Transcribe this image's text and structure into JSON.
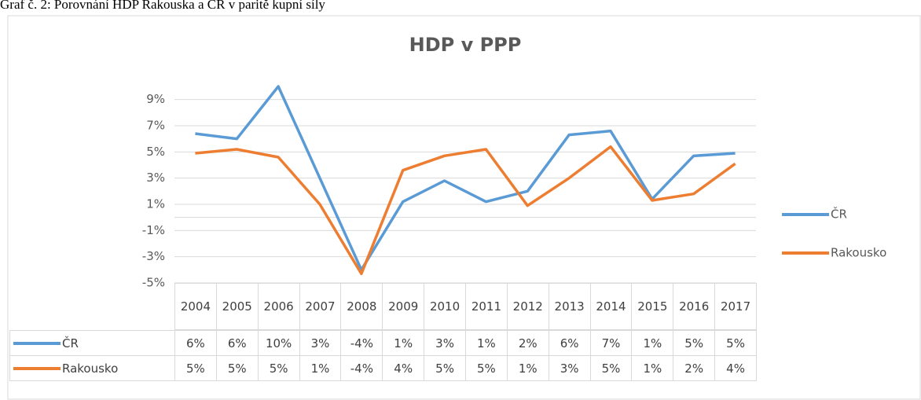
{
  "caption": "Graf č. 2: Porovnání HDP Rakouska a ČR v paritě kupní síly",
  "chart_data": {
    "type": "line",
    "title": "HDP v PPP",
    "categories": [
      "2004",
      "2005",
      "2006",
      "2007",
      "2008",
      "2009",
      "2010",
      "2011",
      "2012",
      "2013",
      "2014",
      "2015",
      "2016",
      "2017"
    ],
    "series": [
      {
        "name": "ČR",
        "color": "#5b9bd5",
        "values": [
          6.4,
          6.0,
          10.0,
          3.0,
          -4.0,
          1.2,
          2.8,
          1.2,
          2.0,
          6.3,
          6.6,
          1.4,
          4.7,
          4.9
        ],
        "value_labels": [
          "6%",
          "6%",
          "10%",
          "3%",
          "-4%",
          "1%",
          "3%",
          "1%",
          "2%",
          "6%",
          "7%",
          "1%",
          "5%",
          "5%"
        ]
      },
      {
        "name": "Rakousko",
        "color": "#ed7d31",
        "values": [
          4.9,
          5.2,
          4.6,
          1.0,
          -4.3,
          3.6,
          4.7,
          5.2,
          0.9,
          3.0,
          5.4,
          1.3,
          1.8,
          4.1
        ],
        "value_labels": [
          "5%",
          "5%",
          "5%",
          "1%",
          "-4%",
          "4%",
          "5%",
          "5%",
          "1%",
          "3%",
          "5%",
          "1%",
          "2%",
          "4%"
        ]
      }
    ],
    "ylim": [
      -5,
      10
    ],
    "yticks": [
      {
        "value": -5,
        "label": "-5%"
      },
      {
        "value": -3,
        "label": "-3%"
      },
      {
        "value": -1,
        "label": "-1%"
      },
      {
        "value": 1,
        "label": "1%"
      },
      {
        "value": 3,
        "label": "3%"
      },
      {
        "value": 5,
        "label": "5%"
      },
      {
        "value": 7,
        "label": "7%"
      },
      {
        "value": 9,
        "label": "9%"
      }
    ],
    "grid": true,
    "legend": "right"
  }
}
